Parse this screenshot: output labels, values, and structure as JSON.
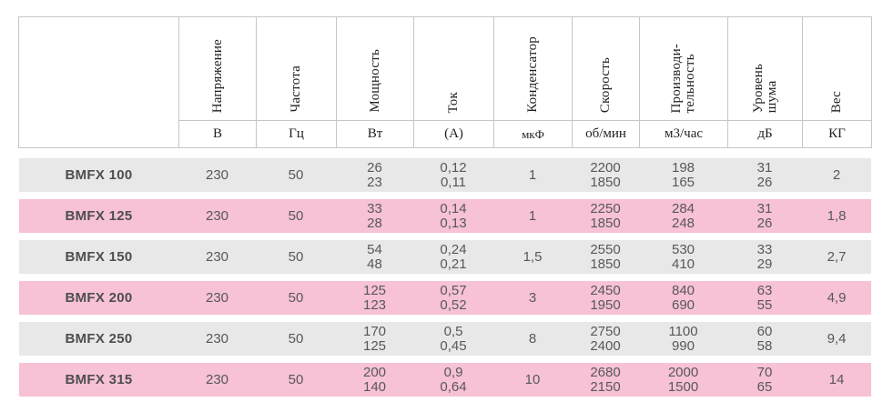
{
  "colors": {
    "background": "#ffffff",
    "row_gray": "#e8e8e8",
    "row_pink": "#f7c1d6",
    "border": "#c6c6c6",
    "header_text": "#1f1f1f",
    "data_text": "#58585a",
    "model_text": "#4d4e50"
  },
  "header": {
    "columns": [
      {
        "key": "voltage",
        "label": "Напряжение",
        "unit": "В"
      },
      {
        "key": "frequency",
        "label": "Частота",
        "unit": "Гц"
      },
      {
        "key": "power",
        "label": "Мощность",
        "unit": "Вт"
      },
      {
        "key": "current",
        "label": "Ток",
        "unit": "(А)"
      },
      {
        "key": "capacitor",
        "label": "Конденсатор",
        "unit": "мкФ"
      },
      {
        "key": "speed",
        "label": "Скорость",
        "unit": "об/мин"
      },
      {
        "key": "capacity",
        "label": "Производи-\nтельность",
        "unit": "м3/час"
      },
      {
        "key": "noise",
        "label": "Уровень\nшума",
        "unit": "дБ"
      },
      {
        "key": "weight",
        "label": "Вес",
        "unit": "КГ"
      }
    ]
  },
  "rows": [
    {
      "model": "BMFX 100",
      "values": [
        "230",
        "50",
        "26\n23",
        "0,12\n0,11",
        "1",
        "2200\n1850",
        "198\n165",
        "31\n26",
        "2"
      ]
    },
    {
      "model": "BMFX 125",
      "values": [
        "230",
        "50",
        "33\n28",
        "0,14\n0,13",
        "1",
        "2250\n1850",
        "284\n248",
        "31\n26",
        "1,8"
      ]
    },
    {
      "model": "BMFX 150",
      "values": [
        "230",
        "50",
        "54\n48",
        "0,24\n0,21",
        "1,5",
        "2550\n1850",
        "530\n410",
        "33\n29",
        "2,7"
      ]
    },
    {
      "model": "BMFX 200",
      "values": [
        "230",
        "50",
        "125\n123",
        "0,57\n0,52",
        "3",
        "2450\n1950",
        "840\n690",
        "63\n55",
        "4,9"
      ]
    },
    {
      "model": "BMFX 250",
      "values": [
        "230",
        "50",
        "170\n125",
        "0,5\n0,45",
        "8",
        "2750\n2400",
        "1100\n990",
        "60\n58",
        "9,4"
      ]
    },
    {
      "model": "BMFX 315",
      "values": [
        "230",
        "50",
        "200\n140",
        "0,9\n0,64",
        "10",
        "2680\n2150",
        "2000\n1500",
        "70\n65",
        "14"
      ]
    }
  ]
}
